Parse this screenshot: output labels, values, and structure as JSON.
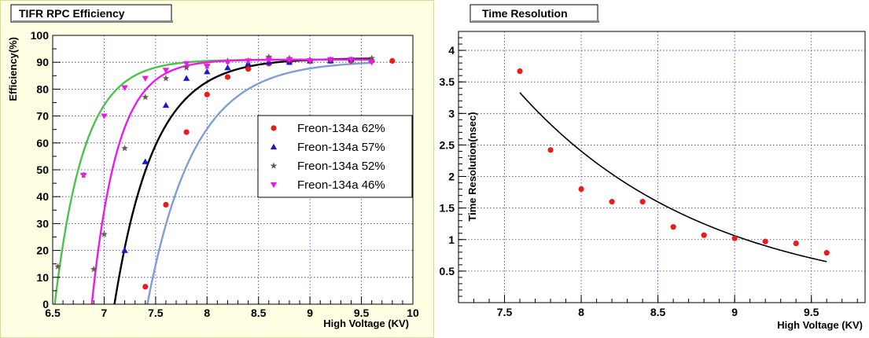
{
  "charts": [
    {
      "id": "efficiency",
      "title": "TIFR RPC Efficiency",
      "chart_data": {
        "type": "scatter",
        "title": "TIFR RPC Efficiency",
        "xlabel": "High Voltage (KV)",
        "ylabel": "Efficiency(%)",
        "xlim": [
          6.5,
          10
        ],
        "ylim": [
          0,
          100
        ],
        "xticks": [
          "6.5",
          "7",
          "7.5",
          "8",
          "8.5",
          "9",
          "9.5",
          "10"
        ],
        "yticks": [
          "0",
          "10",
          "20",
          "30",
          "40",
          "50",
          "60",
          "70",
          "80",
          "90",
          "100"
        ],
        "grid": true,
        "legend_position": "right",
        "series": [
          {
            "name": "Freon-134a  62%",
            "color": "#e81c1c",
            "marker": "circle",
            "curve_color": "#7f9fd0",
            "x": [
              7.4,
              7.6,
              7.8,
              8.0,
              8.2,
              8.4,
              8.6,
              8.8,
              9.0,
              9.2,
              9.4,
              9.6,
              9.8
            ],
            "y": [
              6.5,
              37,
              64,
              78,
              84.5,
              87.5,
              89.5,
              90,
              90.5,
              90.5,
              90.5,
              90.5,
              90.5
            ],
            "fit": {
              "x0": 7.42,
              "top": 90.5,
              "k": 2.2
            }
          },
          {
            "name": "Freon-134a  57%",
            "color": "#1a1acc",
            "marker": "triangle-up",
            "curve_color": "#000000",
            "x": [
              7.2,
              7.4,
              7.6,
              7.8,
              8.0,
              8.2,
              8.4,
              8.6,
              8.8,
              9.0,
              9.2,
              9.4,
              9.6
            ],
            "y": [
              20,
              53,
              74,
              84,
              86.5,
              88,
              89.5,
              90,
              90,
              90.5,
              90.5,
              91,
              91
            ],
            "fit": {
              "x0": 7.1,
              "top": 91.5,
              "k": 2.6
            }
          },
          {
            "name": "Freon-134a  52%",
            "color": "#6b5a48",
            "marker": "star",
            "curve_color": "#4cc24c",
            "x": [
              6.55,
              6.8,
              6.9,
              7.0,
              7.2,
              7.4,
              7.6,
              7.8,
              8.0,
              8.2,
              8.4,
              8.6,
              8.8,
              9.0,
              9.2,
              9.4,
              9.6
            ],
            "y": [
              14,
              48,
              13,
              26,
              58,
              77,
              84,
              88,
              88.5,
              90.5,
              90.5,
              92,
              91.5,
              91,
              91,
              91,
              91.5
            ],
            "fit": {
              "x0": 6.52,
              "top": 91,
              "k": 3.5
            }
          },
          {
            "name": "Freon-134a  46%",
            "color": "#e81ce8",
            "marker": "triangle-down",
            "curve_color": "#e81ce8",
            "x": [
              6.8,
              7.0,
              7.2,
              7.4,
              7.6,
              7.8,
              8.0,
              8.2,
              8.4,
              8.6,
              8.8,
              9.0,
              9.2,
              9.4,
              9.6
            ],
            "y": [
              48,
              70,
              80.5,
              84,
              87,
              89.5,
              88.5,
              90,
              90.5,
              91,
              91,
              90.5,
              91,
              91,
              90
            ],
            "fit": {
              "x0": 6.88,
              "top": 91,
              "k": 4.0
            }
          }
        ]
      }
    },
    {
      "id": "timeres",
      "title": "Time Resolution",
      "chart_data": {
        "type": "scatter",
        "title": "Time Resolution",
        "xlabel": "High Voltage (KV)",
        "ylabel": "Time Resolution(nsec)",
        "xlim": [
          7.2,
          9.85
        ],
        "ylim": [
          0,
          4.3
        ],
        "xticks": [
          "7.5",
          "8",
          "8.5",
          "9",
          "9.5"
        ],
        "yticks": [
          "0.5",
          "1",
          "1.5",
          "2",
          "2.5",
          "3",
          "3.5",
          "4"
        ],
        "grid": true,
        "series": [
          {
            "name": "",
            "color": "#e81c1c",
            "marker": "circle",
            "x": [
              7.6,
              7.8,
              8.0,
              8.2,
              8.4,
              8.6,
              8.8,
              9.0,
              9.2,
              9.4,
              9.6
            ],
            "y": [
              3.67,
              2.42,
              1.8,
              1.6,
              1.6,
              1.2,
              1.07,
              1.02,
              0.97,
              0.94,
              0.79
            ]
          }
        ],
        "fit_curve": {
          "x": [
            7.6,
            9.6
          ],
          "y_start": 3.33,
          "y_end": 0.65
        }
      }
    }
  ]
}
